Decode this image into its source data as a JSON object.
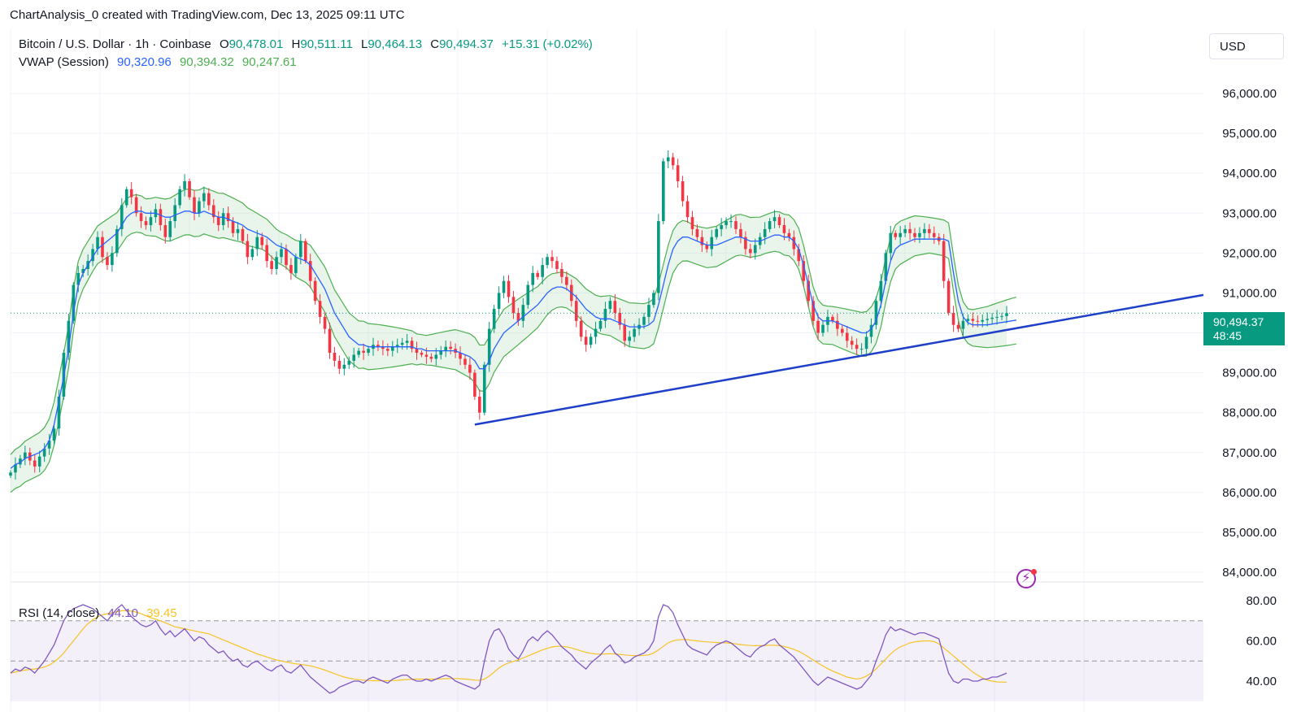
{
  "header": {
    "attribution": "ChartAnalysis_0 created with TradingView.com, Dec 13, 2025 09:11 UTC"
  },
  "symbol": {
    "name": "Bitcoin / U.S. Dollar · 1h · Coinbase",
    "open_label": "O",
    "open": "90,478.01",
    "high_label": "H",
    "high": "90,511.11",
    "low_label": "L",
    "low": "90,464.13",
    "close_label": "C",
    "close": "90,494.37",
    "change": "+15.31 (+0.02%)"
  },
  "vwap": {
    "label": "VWAP (Session)",
    "v1": "90,320.96",
    "v2": "90,394.32",
    "v3": "90,247.61"
  },
  "rsi": {
    "label": "RSI (14, close)",
    "value": "44.10",
    "ma": "39.45"
  },
  "currency": "USD",
  "last_price": {
    "price": "90,494.37",
    "countdown": "48:45"
  },
  "colors": {
    "up": "#089981",
    "down": "#f23645",
    "vwap": "#2962ff",
    "band": "#4caf50",
    "trendline": "#1e3fc8",
    "rsi": "#7e57c2",
    "rsi_ma": "#f7c325"
  },
  "icons": {
    "alert": "lightning-alert-icon"
  },
  "chart_data": [
    {
      "type": "candlestick",
      "title": "Bitcoin / U.S. Dollar · 1h · Coinbase",
      "y_ticks": [
        "96,000.00",
        "95,000.00",
        "94,000.00",
        "93,000.00",
        "92,000.00",
        "91,000.00",
        "89,000.00",
        "88,000.00",
        "87,000.00",
        "86,000.00",
        "85,000.00",
        "84,000.00"
      ],
      "ylim": [
        83800,
        96800
      ],
      "grid": true,
      "closes": [
        86500,
        86700,
        86850,
        87000,
        86800,
        86650,
        86900,
        87100,
        87300,
        87600,
        88400,
        89500,
        90300,
        91200,
        91500,
        91600,
        91800,
        92100,
        92400,
        91900,
        91700,
        92000,
        92600,
        93200,
        93600,
        93400,
        93000,
        92800,
        92700,
        92900,
        93100,
        92700,
        92400,
        92800,
        93200,
        93600,
        93800,
        93400,
        93000,
        93300,
        93500,
        93200,
        92900,
        92700,
        93000,
        92800,
        92500,
        92600,
        92300,
        91900,
        92100,
        92400,
        92200,
        91800,
        91600,
        91900,
        92100,
        91700,
        91500,
        91900,
        92300,
        91800,
        91300,
        90800,
        90400,
        90100,
        89500,
        89300,
        89100,
        89200,
        89300,
        89450,
        89550,
        89500,
        89600,
        89700,
        89650,
        89600,
        89550,
        89650,
        89700,
        89750,
        89800,
        89600,
        89500,
        89450,
        89400,
        89350,
        89450,
        89550,
        89650,
        89600,
        89500,
        89350,
        89200,
        89000,
        88400,
        88000,
        89200,
        90100,
        90600,
        91000,
        91300,
        90900,
        90500,
        90300,
        90700,
        91200,
        91500,
        91400,
        91700,
        91900,
        91800,
        91600,
        91400,
        91200,
        90800,
        90300,
        89900,
        89700,
        89900,
        90100,
        90300,
        90600,
        90800,
        90500,
        90200,
        89800,
        89900,
        90100,
        90200,
        90400,
        90700,
        91000,
        92800,
        94300,
        94400,
        94200,
        93800,
        93300,
        92900,
        92600,
        92400,
        92200,
        92100,
        92400,
        92600,
        92700,
        92800,
        92800,
        92600,
        92400,
        92100,
        92000,
        92200,
        92400,
        92600,
        92800,
        92900,
        92700,
        92500,
        92400,
        92100,
        91800,
        91300,
        90800,
        90300,
        90000,
        90200,
        90400,
        90300,
        90100,
        90000,
        89800,
        89700,
        89600,
        89600,
        89900,
        90200,
        90800,
        91300,
        92000,
        92500,
        92400,
        92500,
        92600,
        92500,
        92400,
        92500,
        92600,
        92500,
        92400,
        92300,
        91300,
        90500,
        90200,
        90100,
        90300,
        90350,
        90300,
        90280,
        90320,
        90350,
        90380,
        90400,
        90420,
        90494
      ],
      "vwap": [
        86600,
        86700,
        86750,
        86850,
        86900,
        86950,
        87000,
        87100,
        87300,
        87700,
        88300,
        88900,
        89600,
        90500,
        91200,
        91500,
        91700,
        91900,
        92100,
        92200,
        92300,
        92400,
        92500,
        92700,
        92900,
        93000,
        93050,
        93050,
        93000,
        93000,
        93000,
        92950,
        92900,
        92900,
        92950,
        93000,
        93050,
        93050,
        93000,
        93000,
        93050,
        93000,
        92950,
        92900,
        92900,
        92850,
        92800,
        92750,
        92700,
        92600,
        92550,
        92500,
        92450,
        92400,
        92300,
        92200,
        92150,
        92100,
        92000,
        91900,
        91850,
        91800,
        91700,
        91500,
        91300,
        91100,
        90800,
        90500,
        90300,
        90100,
        89900,
        89800,
        89700,
        89700,
        89650,
        89650,
        89650,
        89650,
        89650,
        89650,
        89650,
        89650,
        89650,
        89650,
        89600,
        89600,
        89550,
        89550,
        89550,
        89550,
        89550,
        89550,
        89550,
        89500,
        89450,
        89400,
        89300,
        89100,
        89100,
        89300,
        89600,
        89800,
        90000,
        90100,
        90200,
        90300,
        90400,
        90500,
        90600,
        90700,
        90850,
        91000,
        91100,
        91150,
        91150,
        91100,
        91000,
        90900,
        90750,
        90600,
        90500,
        90400,
        90350,
        90350,
        90350,
        90300,
        90250,
        90200,
        90150,
        90150,
        90150,
        90150,
        90200,
        90300,
        90700,
        91200,
        91700,
        92100,
        92300,
        92400,
        92400,
        92350,
        92300,
        92250,
        92200,
        92200,
        92200,
        92250,
        92300,
        92350,
        92400,
        92400,
        92350,
        92300,
        92300,
        92300,
        92350,
        92400,
        92450,
        92450,
        92400,
        92400,
        92300,
        92100,
        91700,
        91200,
        90700,
        90400,
        90300,
        90300,
        90300,
        90250,
        90200,
        90150,
        90100,
        90050,
        90000,
        90000,
        90100,
        90300,
        90700,
        91300,
        91800,
        92100,
        92200,
        92250,
        92300,
        92350,
        92350,
        92350,
        92350,
        92350,
        92350,
        92350,
        92300,
        91500,
        90800,
        90400,
        90250,
        90200,
        90200,
        90200,
        90200,
        90220,
        90240,
        90260,
        90280,
        90300,
        90320
      ]
    },
    {
      "type": "line",
      "title": "RSI (14, close)",
      "y_ticks": [
        "80.00",
        "60.00",
        "40.00"
      ],
      "ylim": [
        32,
        86
      ],
      "bands": [
        70,
        50
      ],
      "series": [
        {
          "name": "RSI",
          "values": [
            44,
            46,
            45,
            47,
            46,
            44,
            47,
            50,
            54,
            58,
            64,
            70,
            74,
            76,
            77,
            78,
            77,
            76,
            74,
            72,
            70,
            73,
            76,
            78,
            75,
            72,
            70,
            68,
            67,
            68,
            70,
            66,
            63,
            65,
            62,
            64,
            66,
            63,
            60,
            62,
            61,
            58,
            56,
            54,
            55,
            52,
            50,
            51,
            48,
            47,
            49,
            50,
            48,
            46,
            45,
            47,
            48,
            45,
            44,
            46,
            48,
            45,
            42,
            40,
            38,
            36,
            34,
            35,
            37,
            38,
            39,
            40,
            40,
            39,
            41,
            42,
            41,
            40,
            39,
            41,
            42,
            43,
            43,
            41,
            40,
            40,
            41,
            40,
            41,
            42,
            43,
            42,
            40,
            39,
            38,
            37,
            36,
            38,
            50,
            60,
            65,
            66,
            62,
            56,
            53,
            51,
            55,
            60,
            62,
            60,
            63,
            65,
            63,
            60,
            57,
            55,
            53,
            50,
            48,
            46,
            49,
            51,
            53,
            56,
            58,
            54,
            52,
            49,
            50,
            52,
            53,
            54,
            56,
            60,
            72,
            78,
            77,
            74,
            68,
            63,
            58,
            56,
            55,
            54,
            53,
            56,
            58,
            59,
            60,
            59,
            57,
            55,
            53,
            52,
            55,
            57,
            58,
            60,
            61,
            58,
            56,
            54,
            52,
            49,
            46,
            43,
            40,
            38,
            40,
            42,
            41,
            40,
            39,
            38,
            37,
            36,
            37,
            40,
            43,
            50,
            56,
            63,
            67,
            65,
            66,
            65,
            64,
            63,
            64,
            64,
            63,
            62,
            61,
            52,
            44,
            40,
            39,
            41,
            41,
            40,
            40,
            41,
            41,
            42,
            42,
            43,
            44
          ]
        },
        {
          "name": "MA",
          "values": [
            44,
            44.5,
            45,
            45.5,
            45.8,
            46,
            46.5,
            47,
            48,
            49.5,
            51.5,
            54,
            57,
            60,
            63,
            66,
            68.5,
            70.5,
            72,
            73,
            73.5,
            74,
            74.5,
            75,
            75,
            74.8,
            74.3,
            73.5,
            72.5,
            71.5,
            70.8,
            70,
            69,
            68,
            67,
            66.5,
            66,
            65.5,
            65,
            64.5,
            64,
            63.5,
            62.5,
            61.5,
            60.5,
            59.5,
            58.5,
            57.5,
            56.5,
            55.5,
            54.5,
            53.5,
            52.8,
            52,
            51.2,
            50.5,
            50,
            49.5,
            49,
            48.6,
            48.3,
            48,
            47.5,
            47,
            46.3,
            45.5,
            44.6,
            43.7,
            42.8,
            42,
            41.5,
            41,
            40.7,
            40.5,
            40.3,
            40.2,
            40.2,
            40.2,
            40.2,
            40.3,
            40.4,
            40.6,
            40.8,
            40.9,
            41,
            41,
            41,
            41,
            41,
            41.1,
            41.2,
            41.3,
            41.3,
            41.2,
            41,
            40.8,
            40.5,
            40.4,
            41,
            42.5,
            44.5,
            46.5,
            48,
            49,
            49.8,
            50.5,
            51.5,
            52.5,
            53.5,
            54.5,
            55.5,
            56.3,
            57,
            57.3,
            57.3,
            57,
            56.5,
            55.8,
            55,
            54.3,
            53.8,
            53.5,
            53.4,
            53.5,
            53.6,
            53.5,
            53.3,
            53,
            52.8,
            52.7,
            52.7,
            52.8,
            53.1,
            54,
            55.5,
            57.3,
            59,
            60,
            60.5,
            60.7,
            60.6,
            60.3,
            60,
            59.7,
            59.5,
            59.3,
            59.2,
            59.1,
            59,
            58.8,
            58.5,
            58.2,
            57.9,
            57.7,
            57.6,
            57.6,
            57.7,
            57.8,
            57.8,
            57.6,
            57.2,
            56.6,
            55.8,
            54.8,
            53.5,
            52,
            50.5,
            49,
            47.5,
            46.2,
            45,
            44,
            43,
            42,
            41.5,
            41,
            41.5,
            42.5,
            44,
            46,
            48.5,
            51,
            53.5,
            55.5,
            57,
            58,
            59,
            59.5,
            59.8,
            60,
            60,
            59.6,
            58.5,
            56.5,
            54.5,
            52.5,
            50.5,
            48.5,
            46.5,
            44.5,
            43,
            41.5,
            40.5,
            40,
            39.6,
            39.5,
            39.45
          ]
        }
      ]
    }
  ],
  "trendline": {
    "start": {
      "index": 96,
      "price": 87700
    },
    "end": {
      "index": 236,
      "price": 90950
    }
  }
}
